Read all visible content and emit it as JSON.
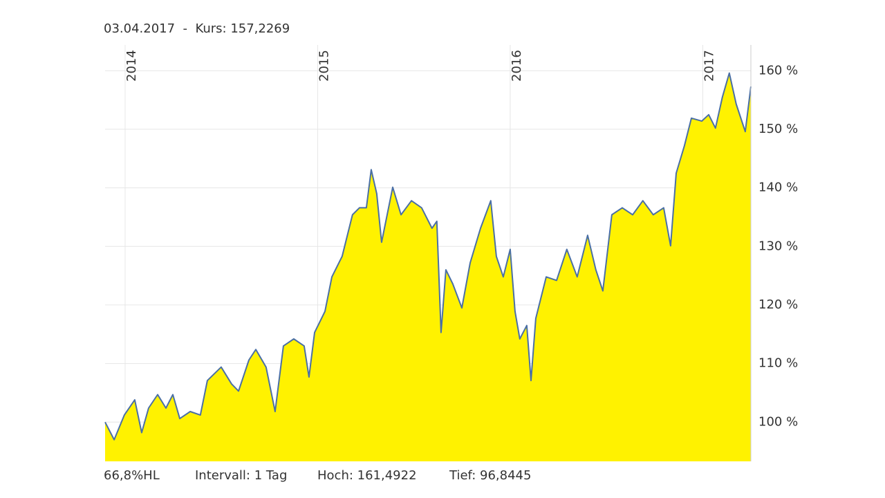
{
  "chart_data": {
    "type": "area",
    "title": "03.04.2017  -  Kurs: 157,2269",
    "annotations": [
      "66,8%HL",
      "Intervall: 1 Tag",
      "Hoch: 161,4922",
      "Tief: 96,8445"
    ],
    "color": "#4a6fa5",
    "fill_color": "#fff200",
    "grid": true,
    "xlim": [
      2013.896,
      2017.25
    ],
    "xticks": [
      2014,
      2015,
      2016,
      2017
    ],
    "ylim": [
      93.3,
      164.4
    ],
    "yticks": [
      {
        "value": 100,
        "label": "100 %"
      },
      {
        "value": 110,
        "label": "110 %"
      },
      {
        "value": 120,
        "label": "120 %"
      },
      {
        "value": 130,
        "label": "130 %"
      },
      {
        "value": 140,
        "label": "140 %"
      },
      {
        "value": 150,
        "label": "150 %"
      },
      {
        "value": 160,
        "label": "160 %"
      }
    ],
    "x": [
      2013.896,
      2013.943,
      2013.996,
      2014.05,
      2014.086,
      2014.122,
      2014.169,
      2014.212,
      2014.248,
      2014.284,
      2014.338,
      2014.391,
      2014.427,
      2014.499,
      2014.553,
      2014.589,
      2014.643,
      2014.679,
      2014.732,
      2014.779,
      2014.822,
      2014.876,
      2014.93,
      2014.955,
      2014.984,
      2015.038,
      2015.074,
      2015.127,
      2015.181,
      2015.217,
      2015.253,
      2015.278,
      2015.307,
      2015.332,
      2015.39,
      2015.433,
      2015.487,
      2015.54,
      2015.594,
      2015.619,
      2015.641,
      2015.666,
      2015.702,
      2015.749,
      2015.792,
      2015.846,
      2015.899,
      2015.928,
      2015.964,
      2016.0,
      2016.025,
      2016.05,
      2016.086,
      2016.108,
      2016.133,
      2016.187,
      2016.241,
      2016.294,
      2016.348,
      2016.402,
      2016.445,
      2016.481,
      2016.528,
      2016.582,
      2016.636,
      2016.689,
      2016.743,
      2016.797,
      2016.833,
      2016.862,
      2016.905,
      2016.941,
      2016.995,
      2017.031,
      2017.066,
      2017.102,
      2017.138,
      2017.174,
      2017.221,
      2017.25
    ],
    "values": [
      100,
      97,
      101.2,
      103.8,
      98.2,
      102.4,
      104.7,
      102.4,
      104.7,
      100.6,
      101.8,
      101.2,
      107.1,
      109.4,
      106.5,
      105.3,
      110.6,
      112.4,
      109.4,
      101.8,
      113,
      114.2,
      113,
      107.7,
      115.3,
      118.9,
      124.8,
      128.3,
      135.4,
      136.6,
      136.6,
      143.1,
      139,
      130.7,
      140.1,
      135.4,
      137.8,
      136.6,
      133.1,
      134.3,
      115.3,
      126,
      123.6,
      119.5,
      127.2,
      133.1,
      137.8,
      128.3,
      124.8,
      129.5,
      118.9,
      114.2,
      116.5,
      107.1,
      117.7,
      124.8,
      124.2,
      129.5,
      124.8,
      131.9,
      126,
      122.4,
      135.4,
      136.6,
      135.4,
      137.8,
      135.4,
      136.6,
      130.1,
      142.5,
      147.2,
      151.9,
      151.4,
      152.5,
      150.2,
      155.5,
      159.6,
      154.3,
      149.6,
      157.3
    ]
  }
}
